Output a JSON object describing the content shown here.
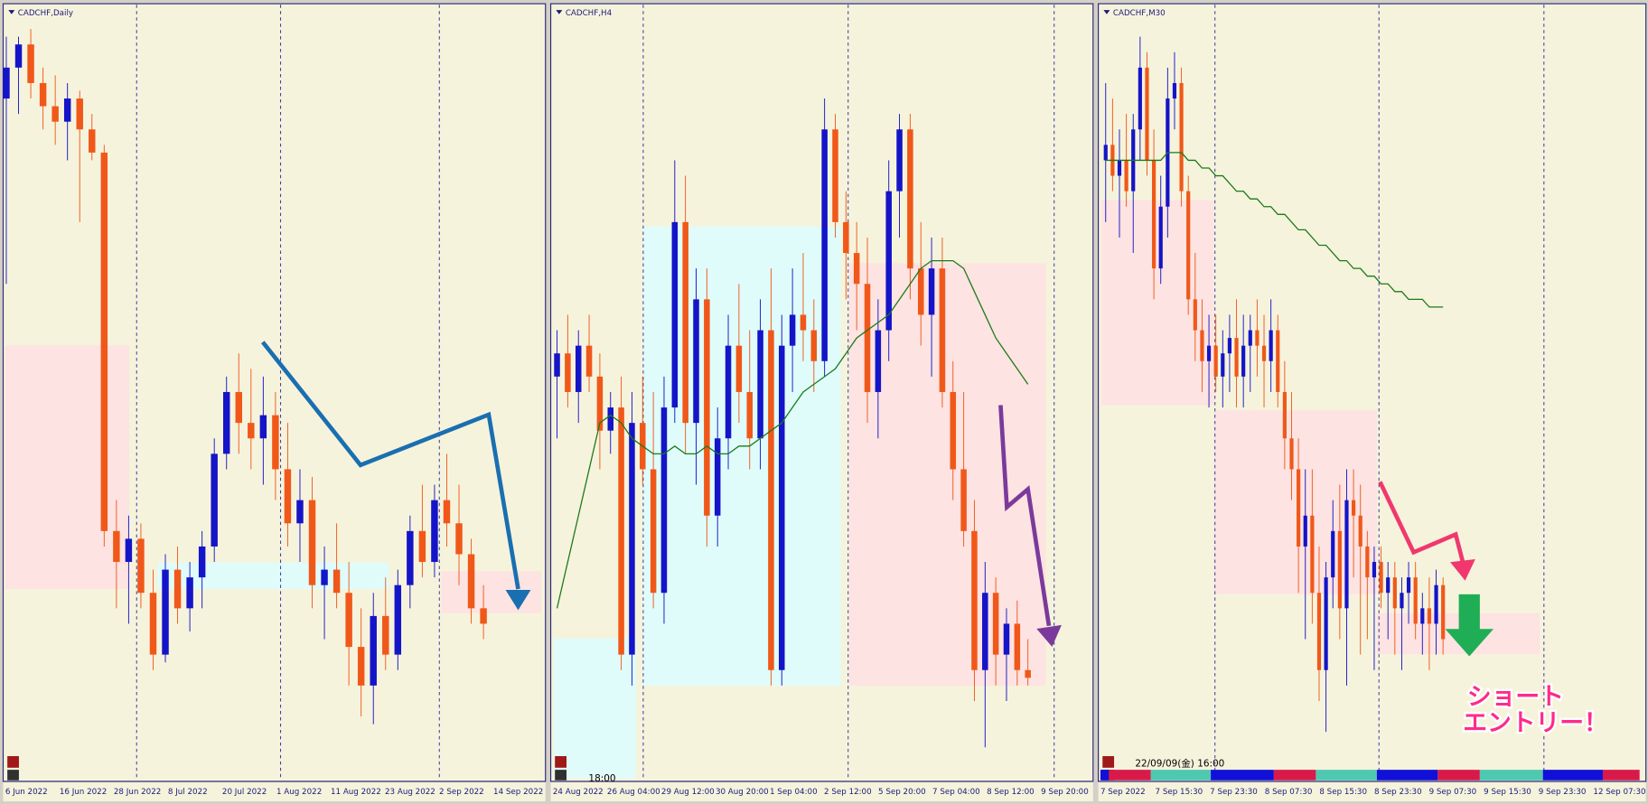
{
  "chart_data": [
    {
      "type": "candlestick",
      "title": "CADCHF,Daily",
      "ylim": [
        0,
        100
      ],
      "x_labels": [
        "6 Jun 2022",
        "16 Jun 2022",
        "28 Jun 2022",
        "8 Jul 2022",
        "20 Jul 2022",
        "1 Aug 2022",
        "11 Aug 2022",
        "23 Aug 2022",
        "2 Sep 2022",
        "14 Sep 2022"
      ],
      "candles": [
        [
          88,
          96,
          64,
          92
        ],
        [
          92,
          96,
          86,
          95
        ],
        [
          95,
          97,
          88,
          90
        ],
        [
          90,
          92,
          84,
          87
        ],
        [
          87,
          91,
          82,
          85
        ],
        [
          85,
          90,
          80,
          88
        ],
        [
          88,
          89,
          72,
          84
        ],
        [
          84,
          86,
          80,
          81
        ],
        [
          81,
          82,
          30,
          32
        ],
        [
          32,
          36,
          22,
          28
        ],
        [
          28,
          34,
          20,
          31
        ],
        [
          31,
          33,
          22,
          24
        ],
        [
          24,
          27,
          14,
          16
        ],
        [
          16,
          29,
          15,
          27
        ],
        [
          27,
          30,
          20,
          22
        ],
        [
          22,
          28,
          19,
          26
        ],
        [
          26,
          32,
          22,
          30
        ],
        [
          30,
          44,
          28,
          42
        ],
        [
          42,
          52,
          40,
          50
        ],
        [
          50,
          55,
          42,
          46
        ],
        [
          46,
          53,
          40,
          44
        ],
        [
          44,
          52,
          38,
          47
        ],
        [
          47,
          50,
          36,
          40
        ],
        [
          40,
          46,
          30,
          33
        ],
        [
          33,
          40,
          28,
          36
        ],
        [
          36,
          39,
          22,
          25
        ],
        [
          25,
          30,
          18,
          27
        ],
        [
          27,
          33,
          22,
          24
        ],
        [
          24,
          28,
          12,
          17
        ],
        [
          17,
          22,
          8,
          12
        ],
        [
          12,
          24,
          7,
          21
        ],
        [
          21,
          26,
          14,
          16
        ],
        [
          16,
          27,
          14,
          25
        ],
        [
          25,
          34,
          22,
          32
        ],
        [
          32,
          38,
          26,
          28
        ],
        [
          28,
          38,
          26,
          36
        ],
        [
          36,
          42,
          30,
          33
        ],
        [
          33,
          38,
          25,
          29
        ],
        [
          29,
          31,
          20,
          22
        ],
        [
          22,
          25,
          18,
          20
        ]
      ]
    },
    {
      "type": "candlestick",
      "title": "CADCHF,H4",
      "ylim": [
        0,
        100
      ],
      "time_label": "18:00",
      "x_labels": [
        "24 Aug 2022",
        "26 Aug 04:00",
        "29 Aug 12:00",
        "30 Aug 20:00",
        "1 Sep 04:00",
        "2 Sep 12:00",
        "5 Sep 20:00",
        "7 Sep 04:00",
        "8 Sep 12:00",
        "9 Sep 20:00"
      ],
      "candles": [
        [
          52,
          58,
          44,
          55
        ],
        [
          55,
          60,
          48,
          50
        ],
        [
          50,
          58,
          46,
          56
        ],
        [
          56,
          60,
          50,
          52
        ],
        [
          52,
          55,
          40,
          45
        ],
        [
          45,
          50,
          42,
          48
        ],
        [
          48,
          52,
          14,
          16
        ],
        [
          16,
          50,
          12,
          46
        ],
        [
          46,
          52,
          38,
          40
        ],
        [
          40,
          50,
          22,
          24
        ],
        [
          24,
          52,
          20,
          48
        ],
        [
          48,
          80,
          46,
          72
        ],
        [
          72,
          78,
          42,
          46
        ],
        [
          46,
          66,
          38,
          62
        ],
        [
          62,
          66,
          30,
          34
        ],
        [
          34,
          48,
          30,
          44
        ],
        [
          44,
          60,
          40,
          56
        ],
        [
          56,
          64,
          46,
          50
        ],
        [
          50,
          58,
          40,
          44
        ],
        [
          44,
          62,
          40,
          58
        ],
        [
          58,
          66,
          12,
          14
        ],
        [
          14,
          60,
          12,
          56
        ],
        [
          56,
          66,
          50,
          60
        ],
        [
          60,
          68,
          54,
          58
        ],
        [
          58,
          62,
          50,
          54
        ],
        [
          54,
          88,
          52,
          84
        ],
        [
          84,
          86,
          70,
          72
        ],
        [
          72,
          76,
          62,
          68
        ],
        [
          68,
          72,
          58,
          64
        ],
        [
          64,
          70,
          46,
          50
        ],
        [
          50,
          62,
          44,
          58
        ],
        [
          58,
          80,
          54,
          76
        ],
        [
          76,
          86,
          70,
          84
        ],
        [
          84,
          86,
          62,
          66
        ],
        [
          66,
          72,
          56,
          60
        ],
        [
          60,
          70,
          52,
          66
        ],
        [
          66,
          70,
          48,
          50
        ],
        [
          50,
          54,
          36,
          40
        ],
        [
          40,
          50,
          30,
          32
        ],
        [
          32,
          36,
          10,
          14
        ],
        [
          14,
          28,
          4,
          24
        ],
        [
          24,
          26,
          12,
          16
        ],
        [
          16,
          22,
          10,
          20
        ],
        [
          20,
          23,
          12,
          14
        ],
        [
          14,
          18,
          12,
          13
        ]
      ],
      "ma": [
        22,
        28,
        34,
        40,
        46,
        47,
        46,
        44,
        43,
        42,
        42,
        43,
        42,
        42,
        43,
        42,
        42,
        43,
        43,
        44,
        45,
        46,
        48,
        50,
        51,
        52,
        53,
        55,
        57,
        58,
        59,
        60,
        62,
        64,
        66,
        67,
        67,
        67,
        66,
        63,
        60,
        57,
        55,
        53,
        51
      ],
      "ma_color": "#1a7a1a"
    },
    {
      "type": "candlestick",
      "title": "CADCHF,M30",
      "ylim": [
        0,
        100
      ],
      "time_label": "22/09/09(金) 16:00",
      "annotation": [
        "ショート",
        "エントリー！"
      ],
      "x_labels": [
        "7 Sep 2022",
        "7 Sep 15:30",
        "7 Sep 23:30",
        "8 Sep 07:30",
        "8 Sep 15:30",
        "8 Sep 23:30",
        "9 Sep 07:30",
        "9 Sep 15:30",
        "9 Sep 23:30",
        "12 Sep 07:30"
      ],
      "candles": [
        [
          80,
          90,
          72,
          82
        ],
        [
          82,
          88,
          76,
          78
        ],
        [
          78,
          84,
          70,
          80
        ],
        [
          80,
          86,
          74,
          76
        ],
        [
          76,
          86,
          68,
          84
        ],
        [
          84,
          96,
          80,
          92
        ],
        [
          92,
          94,
          78,
          80
        ],
        [
          80,
          84,
          62,
          66
        ],
        [
          66,
          78,
          64,
          74
        ],
        [
          74,
          92,
          70,
          88
        ],
        [
          88,
          94,
          84,
          90
        ],
        [
          90,
          92,
          74,
          76
        ],
        [
          76,
          78,
          60,
          62
        ],
        [
          62,
          68,
          54,
          58
        ],
        [
          58,
          62,
          50,
          54
        ],
        [
          54,
          60,
          48,
          56
        ],
        [
          56,
          60,
          50,
          52
        ],
        [
          52,
          58,
          48,
          55
        ],
        [
          55,
          60,
          50,
          57
        ],
        [
          57,
          62,
          48,
          52
        ],
        [
          52,
          60,
          48,
          56
        ],
        [
          56,
          60,
          50,
          58
        ],
        [
          58,
          62,
          52,
          56
        ],
        [
          56,
          60,
          48,
          54
        ],
        [
          54,
          62,
          50,
          58
        ],
        [
          58,
          60,
          48,
          50
        ],
        [
          50,
          54,
          40,
          44
        ],
        [
          44,
          50,
          36,
          40
        ],
        [
          40,
          44,
          24,
          30
        ],
        [
          30,
          40,
          18,
          34
        ],
        [
          34,
          40,
          20,
          24
        ],
        [
          24,
          30,
          10,
          14
        ],
        [
          14,
          28,
          6,
          26
        ],
        [
          26,
          36,
          22,
          32
        ],
        [
          32,
          38,
          18,
          22
        ],
        [
          22,
          40,
          12,
          36
        ],
        [
          36,
          40,
          26,
          34
        ],
        [
          34,
          38,
          16,
          30
        ],
        [
          30,
          32,
          18,
          26
        ],
        [
          26,
          30,
          14,
          28
        ],
        [
          28,
          30,
          22,
          24
        ],
        [
          24,
          28,
          18,
          26
        ],
        [
          26,
          28,
          16,
          22
        ],
        [
          22,
          26,
          14,
          24
        ],
        [
          24,
          28,
          20,
          26
        ],
        [
          26,
          28,
          18,
          20
        ],
        [
          20,
          24,
          16,
          22
        ],
        [
          22,
          26,
          14,
          20
        ],
        [
          20,
          27,
          16,
          25
        ],
        [
          25,
          26,
          16,
          18
        ]
      ],
      "ma": [
        80,
        80,
        80,
        80,
        80,
        80,
        80,
        80,
        80,
        81,
        81,
        81,
        80,
        80,
        79,
        79,
        78,
        78,
        77,
        76,
        76,
        75,
        75,
        74,
        74,
        73,
        73,
        72,
        71,
        71,
        70,
        69,
        69,
        68,
        67,
        67,
        66,
        66,
        65,
        65,
        64,
        64,
        63,
        63,
        62,
        62,
        62,
        61,
        61,
        61
      ],
      "ma_color": "#1a7a1a"
    }
  ]
}
